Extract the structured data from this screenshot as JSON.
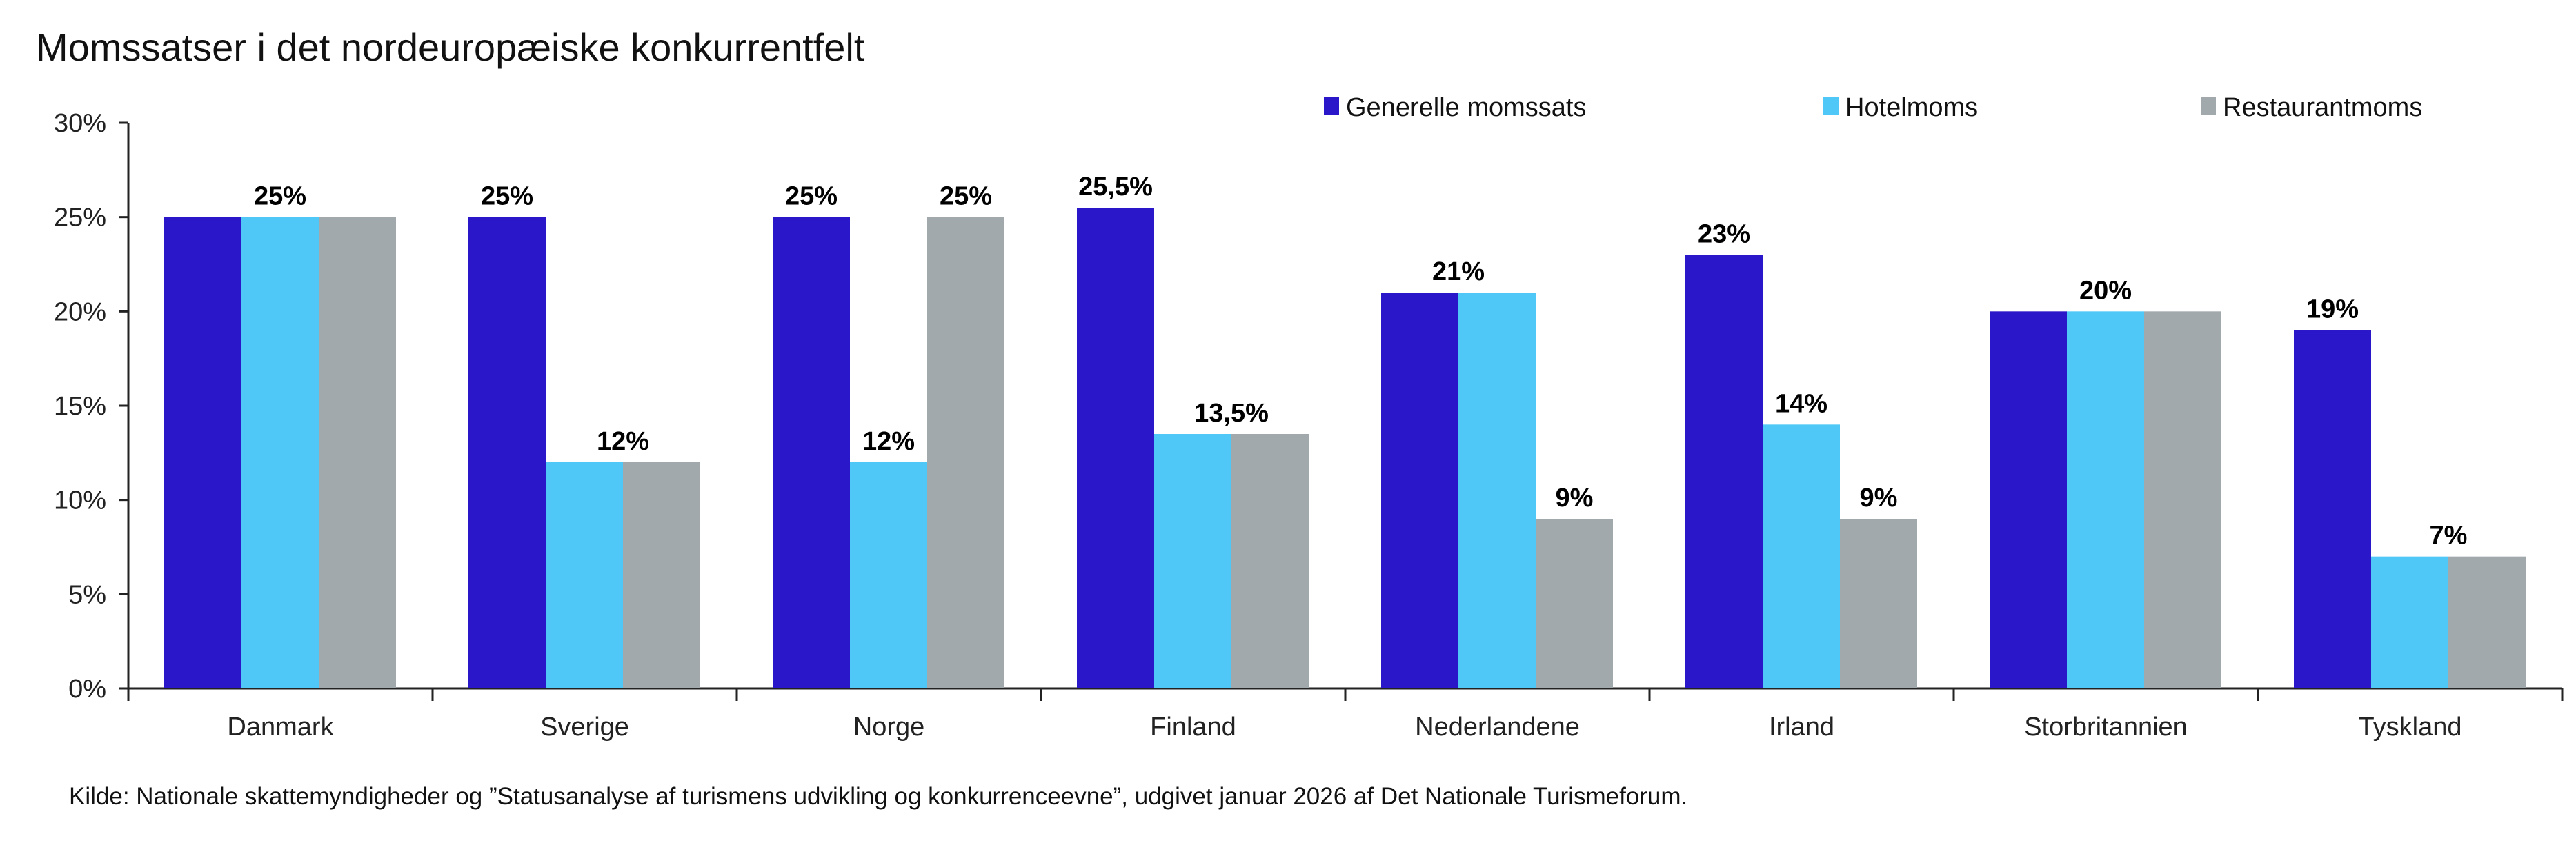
{
  "chart_data": {
    "type": "bar",
    "title": "Momssatser i det nordeuropæiske konkurrentfelt",
    "xlabel": "",
    "ylabel": "",
    "ylim": [
      0,
      30
    ],
    "yticks": [
      0,
      5,
      10,
      15,
      20,
      25,
      30
    ],
    "ytick_labels": [
      "0%",
      "5%",
      "10%",
      "15%",
      "20%",
      "25%",
      "30%"
    ],
    "grid": false,
    "legend_position": "top-right",
    "categories": [
      "Danmark",
      "Sverige",
      "Norge",
      "Finland",
      "Nederlandene",
      "Irland",
      "Storbritannien",
      "Tyskland"
    ],
    "series": [
      {
        "name": "Generelle momssats",
        "color": "#2a17c9",
        "values": [
          25,
          25,
          25,
          25.5,
          21,
          23,
          20,
          19
        ]
      },
      {
        "name": "Hotelmoms",
        "color": "#4fc8f8",
        "values": [
          25,
          12,
          12,
          13.5,
          21,
          14,
          20,
          7
        ]
      },
      {
        "name": "Restaurantmoms",
        "color": "#a1a9ac",
        "values": [
          25,
          12,
          25,
          13.5,
          9,
          9,
          20,
          7
        ]
      }
    ],
    "data_labels": [
      {
        "category": 0,
        "series": [
          1
        ],
        "text": "25%"
      },
      {
        "category": 1,
        "series": [
          0
        ],
        "text": "25%"
      },
      {
        "category": 1,
        "series": [
          1,
          2
        ],
        "text": "12%"
      },
      {
        "category": 2,
        "series": [
          0
        ],
        "text": "25%"
      },
      {
        "category": 2,
        "series": [
          1
        ],
        "text": "12%"
      },
      {
        "category": 2,
        "series": [
          2
        ],
        "text": "25%"
      },
      {
        "category": 3,
        "series": [
          0
        ],
        "text": "25,5%"
      },
      {
        "category": 3,
        "series": [
          1,
          2
        ],
        "text": "13,5%"
      },
      {
        "category": 4,
        "series": [
          0,
          1
        ],
        "text": "21%"
      },
      {
        "category": 4,
        "series": [
          2
        ],
        "text": "9%"
      },
      {
        "category": 5,
        "series": [
          0
        ],
        "text": "23%"
      },
      {
        "category": 5,
        "series": [
          1
        ],
        "text": "14%"
      },
      {
        "category": 5,
        "series": [
          2
        ],
        "text": "9%"
      },
      {
        "category": 6,
        "series": [
          1
        ],
        "text": "20%"
      },
      {
        "category": 7,
        "series": [
          0
        ],
        "text": "19%"
      },
      {
        "category": 7,
        "series": [
          1,
          2
        ],
        "text": "7%"
      }
    ],
    "source": "Kilde: Nationale skattemyndigheder og ”Statusanalyse af turismens udvikling og konkurrenceevne”, udgivet januar 2026 af Det Nationale Turismeforum."
  }
}
